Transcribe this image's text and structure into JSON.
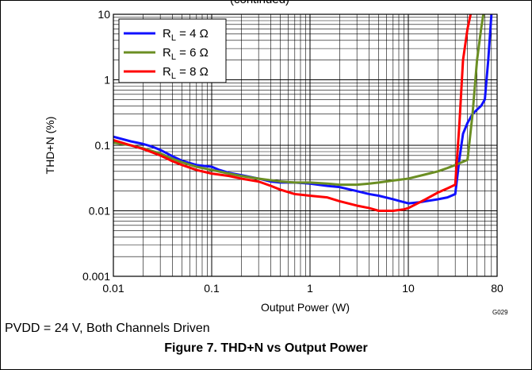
{
  "header_fragment": "(continued)",
  "note": "PVDD = 24 V, Both Channels Driven",
  "caption": "Figure 7. THD+N vs Output Power",
  "figure_code": "G029",
  "chart_data": {
    "type": "line",
    "xlabel": "Output Power (W)",
    "ylabel": "THD+N (%)",
    "xscale": "log",
    "yscale": "log",
    "xlim": [
      0.01,
      80
    ],
    "ylim": [
      0.001,
      10
    ],
    "grid": true,
    "legend_position": "top-left",
    "x_ticks": [
      {
        "value": 0.01,
        "label": "0.01"
      },
      {
        "value": 0.1,
        "label": "0.1"
      },
      {
        "value": 1,
        "label": "1"
      },
      {
        "value": 10,
        "label": "10"
      },
      {
        "value": 80,
        "label": "80"
      }
    ],
    "y_ticks": [
      {
        "value": 0.001,
        "label": "0.001"
      },
      {
        "value": 0.01,
        "label": "0.01"
      },
      {
        "value": 0.1,
        "label": "0.1"
      },
      {
        "value": 1,
        "label": "1"
      },
      {
        "value": 10,
        "label": "10"
      }
    ],
    "series": [
      {
        "name": "RL = 4 Ω",
        "label_main": "R",
        "label_sub": "L",
        "label_rest": " = 4 Ω",
        "color": "#1010ff",
        "points": [
          [
            0.01,
            0.135
          ],
          [
            0.015,
            0.115
          ],
          [
            0.02,
            0.105
          ],
          [
            0.025,
            0.095
          ],
          [
            0.03,
            0.085
          ],
          [
            0.04,
            0.068
          ],
          [
            0.05,
            0.058
          ],
          [
            0.07,
            0.05
          ],
          [
            0.1,
            0.047
          ],
          [
            0.12,
            0.042
          ],
          [
            0.15,
            0.038
          ],
          [
            0.2,
            0.035
          ],
          [
            0.3,
            0.031
          ],
          [
            0.4,
            0.028
          ],
          [
            0.5,
            0.027
          ],
          [
            0.7,
            0.027
          ],
          [
            1,
            0.026
          ],
          [
            1.5,
            0.024
          ],
          [
            2,
            0.023
          ],
          [
            3,
            0.02
          ],
          [
            4,
            0.018
          ],
          [
            5,
            0.017
          ],
          [
            7,
            0.015
          ],
          [
            10,
            0.013
          ],
          [
            13,
            0.0135
          ],
          [
            15,
            0.014
          ],
          [
            20,
            0.015
          ],
          [
            25,
            0.016
          ],
          [
            30,
            0.018
          ],
          [
            33,
            0.06
          ],
          [
            36,
            0.15
          ],
          [
            40,
            0.22
          ],
          [
            45,
            0.3
          ],
          [
            50,
            0.35
          ],
          [
            55,
            0.4
          ],
          [
            60,
            0.5
          ],
          [
            65,
            2
          ],
          [
            70,
            10
          ]
        ]
      },
      {
        "name": "RL = 6 Ω",
        "label_main": "R",
        "label_sub": "L",
        "label_rest": " = 6 Ω",
        "color": "#6b8e23",
        "points": [
          [
            0.01,
            0.11
          ],
          [
            0.015,
            0.1
          ],
          [
            0.02,
            0.09
          ],
          [
            0.03,
            0.075
          ],
          [
            0.04,
            0.062
          ],
          [
            0.05,
            0.055
          ],
          [
            0.07,
            0.047
          ],
          [
            0.1,
            0.042
          ],
          [
            0.15,
            0.037
          ],
          [
            0.2,
            0.034
          ],
          [
            0.3,
            0.031
          ],
          [
            0.5,
            0.028
          ],
          [
            0.7,
            0.027
          ],
          [
            1,
            0.027
          ],
          [
            1.5,
            0.026
          ],
          [
            2,
            0.025
          ],
          [
            3,
            0.025
          ],
          [
            4,
            0.026
          ],
          [
            5,
            0.027
          ],
          [
            7,
            0.029
          ],
          [
            10,
            0.031
          ],
          [
            15,
            0.036
          ],
          [
            20,
            0.04
          ],
          [
            25,
            0.045
          ],
          [
            30,
            0.05
          ],
          [
            35,
            0.055
          ],
          [
            40,
            0.06
          ],
          [
            45,
            0.3
          ],
          [
            50,
            2
          ],
          [
            55,
            6
          ],
          [
            58,
            10
          ]
        ]
      },
      {
        "name": "RL = 8 Ω",
        "label_main": "R",
        "label_sub": "L",
        "label_rest": " = 8 Ω",
        "color": "#ff0000",
        "points": [
          [
            0.01,
            0.12
          ],
          [
            0.015,
            0.1
          ],
          [
            0.02,
            0.088
          ],
          [
            0.03,
            0.07
          ],
          [
            0.04,
            0.057
          ],
          [
            0.05,
            0.05
          ],
          [
            0.07,
            0.042
          ],
          [
            0.1,
            0.037
          ],
          [
            0.15,
            0.034
          ],
          [
            0.2,
            0.031
          ],
          [
            0.3,
            0.028
          ],
          [
            0.4,
            0.024
          ],
          [
            0.5,
            0.021
          ],
          [
            0.7,
            0.018
          ],
          [
            1,
            0.017
          ],
          [
            1.5,
            0.016
          ],
          [
            2,
            0.014
          ],
          [
            3,
            0.012
          ],
          [
            4,
            0.011
          ],
          [
            5,
            0.01
          ],
          [
            7,
            0.01
          ],
          [
            9,
            0.0105
          ],
          [
            10,
            0.011
          ],
          [
            15,
            0.015
          ],
          [
            20,
            0.019
          ],
          [
            25,
            0.022
          ],
          [
            30,
            0.025
          ],
          [
            33,
            0.2
          ],
          [
            36,
            2
          ],
          [
            40,
            6
          ],
          [
            43,
            10
          ]
        ]
      }
    ]
  }
}
